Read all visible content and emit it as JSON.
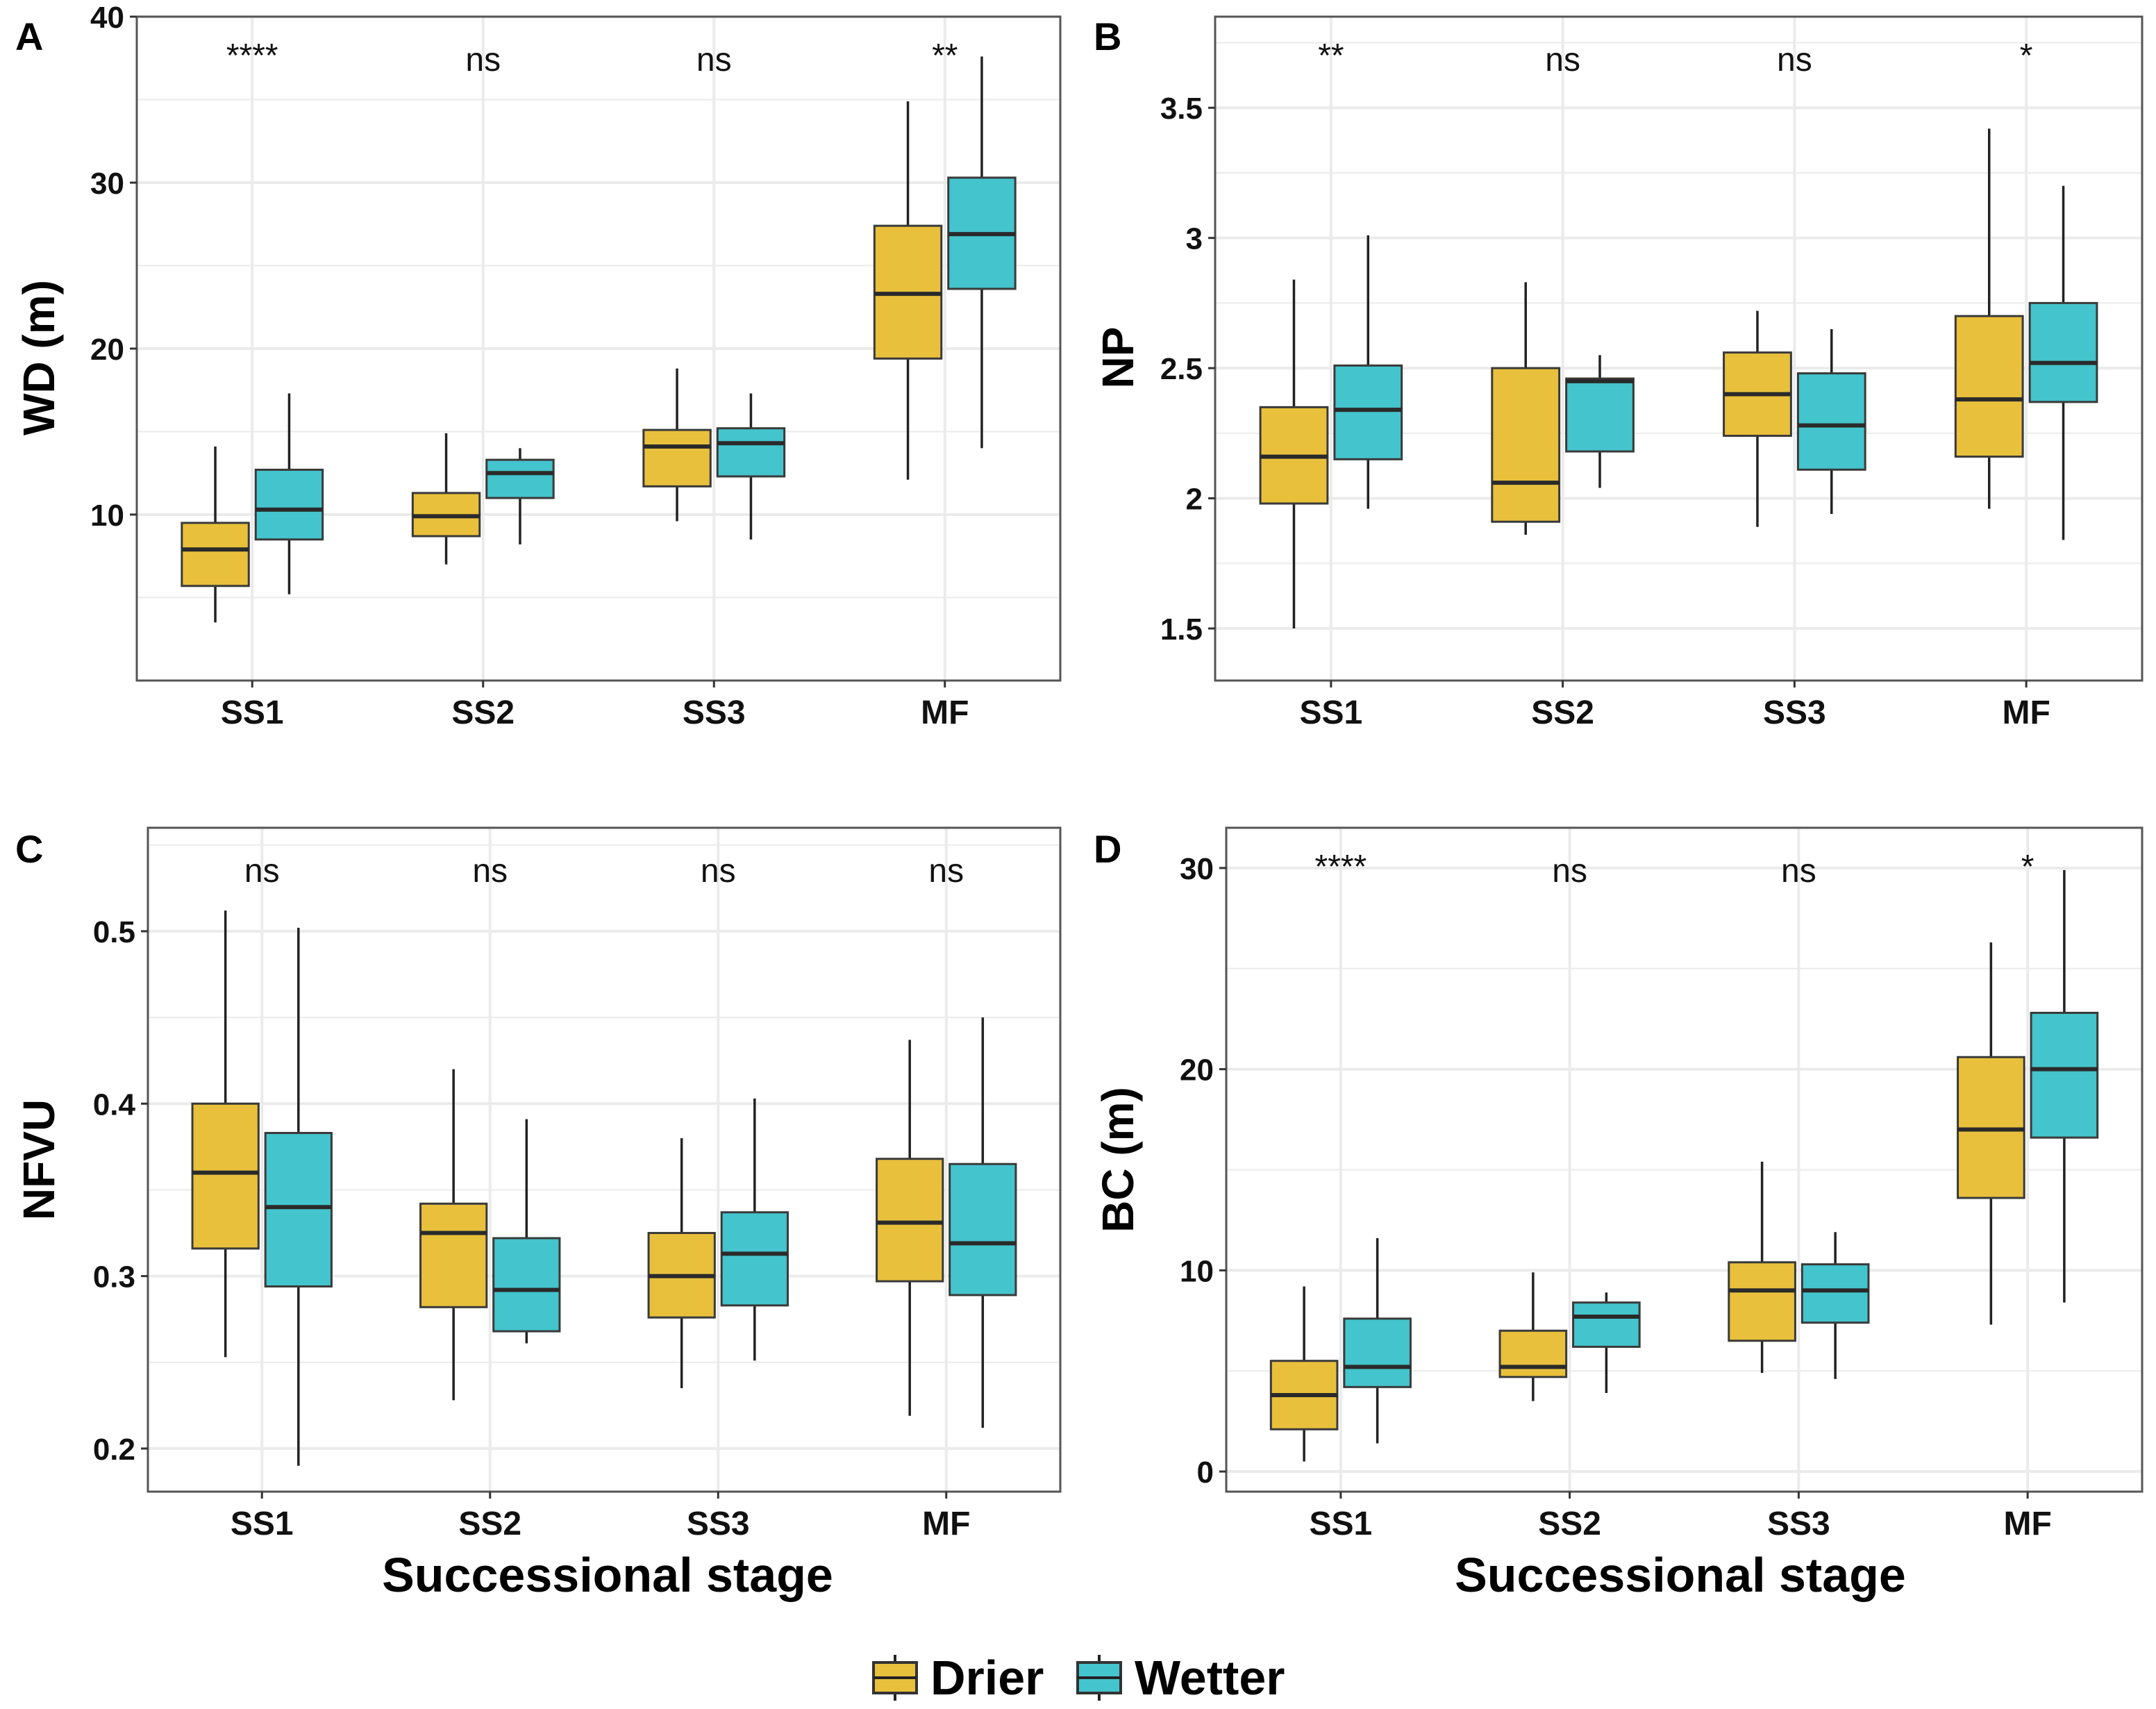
{
  "colors": {
    "drier": "#E8C03C",
    "wetter": "#44C4CC",
    "grid": "#EBEBEB",
    "frame": "#555555",
    "line": "#222222"
  },
  "legend": {
    "items": [
      {
        "label": "Drier"
      },
      {
        "label": "Wetter"
      }
    ]
  },
  "chart_data": [
    {
      "type": "boxplot",
      "panel": "A",
      "ylabel": "WD (m)",
      "xlabel": "",
      "categories": [
        "SS1",
        "SS2",
        "SS3",
        "MF"
      ],
      "ylim": [
        0,
        40
      ],
      "yticks": [
        10,
        20,
        30,
        40
      ],
      "significance": [
        "****",
        "ns",
        "ns",
        "**"
      ],
      "series": [
        {
          "name": "Drier",
          "boxes": [
            {
              "min": 3.5,
              "q1": 5.7,
              "median": 7.9,
              "q3": 9.5,
              "max": 14.1
            },
            {
              "min": 7.0,
              "q1": 8.7,
              "median": 9.9,
              "q3": 11.3,
              "max": 14.9
            },
            {
              "min": 9.6,
              "q1": 11.7,
              "median": 14.1,
              "q3": 15.1,
              "max": 18.8
            },
            {
              "min": 12.1,
              "q1": 19.4,
              "median": 23.3,
              "q3": 27.4,
              "max": 34.9
            }
          ]
        },
        {
          "name": "Wetter",
          "boxes": [
            {
              "min": 5.2,
              "q1": 8.5,
              "median": 10.3,
              "q3": 12.7,
              "max": 17.3
            },
            {
              "min": 8.2,
              "q1": 11.0,
              "median": 12.5,
              "q3": 13.3,
              "max": 14.0
            },
            {
              "min": 8.5,
              "q1": 12.3,
              "median": 14.3,
              "q3": 15.2,
              "max": 17.3
            },
            {
              "min": 14.0,
              "q1": 23.6,
              "median": 26.9,
              "q3": 30.3,
              "max": 37.6
            }
          ]
        }
      ]
    },
    {
      "type": "boxplot",
      "panel": "B",
      "ylabel": "NP",
      "xlabel": "",
      "categories": [
        "SS1",
        "SS2",
        "SS3",
        "MF"
      ],
      "ylim": [
        1.3,
        3.85
      ],
      "yticks": [
        1.5,
        2.0,
        2.5,
        3.0,
        3.5
      ],
      "significance": [
        "**",
        "ns",
        "ns",
        "*"
      ],
      "series": [
        {
          "name": "Drier",
          "boxes": [
            {
              "min": 1.5,
              "q1": 1.98,
              "median": 2.16,
              "q3": 2.35,
              "max": 2.84
            },
            {
              "min": 1.86,
              "q1": 1.91,
              "median": 2.06,
              "q3": 2.5,
              "max": 2.83
            },
            {
              "min": 1.89,
              "q1": 2.24,
              "median": 2.4,
              "q3": 2.56,
              "max": 2.72
            },
            {
              "min": 1.96,
              "q1": 2.16,
              "median": 2.38,
              "q3": 2.7,
              "max": 3.42
            }
          ]
        },
        {
          "name": "Wetter",
          "boxes": [
            {
              "min": 1.96,
              "q1": 2.15,
              "median": 2.34,
              "q3": 2.51,
              "max": 3.01
            },
            {
              "min": 2.04,
              "q1": 2.18,
              "median": 2.45,
              "q3": 2.46,
              "max": 2.55
            },
            {
              "min": 1.94,
              "q1": 2.11,
              "median": 2.28,
              "q3": 2.48,
              "max": 2.65
            },
            {
              "min": 1.84,
              "q1": 2.37,
              "median": 2.52,
              "q3": 2.75,
              "max": 3.2
            }
          ]
        }
      ]
    },
    {
      "type": "boxplot",
      "panel": "C",
      "ylabel": "NFVU",
      "xlabel": "Successional stage",
      "categories": [
        "SS1",
        "SS2",
        "SS3",
        "MF"
      ],
      "ylim": [
        0.175,
        0.56
      ],
      "yticks": [
        0.2,
        0.3,
        0.4,
        0.5
      ],
      "significance": [
        "ns",
        "ns",
        "ns",
        "ns"
      ],
      "series": [
        {
          "name": "Drier",
          "boxes": [
            {
              "min": 0.253,
              "q1": 0.316,
              "median": 0.36,
              "q3": 0.4,
              "max": 0.512
            },
            {
              "min": 0.228,
              "q1": 0.282,
              "median": 0.325,
              "q3": 0.342,
              "max": 0.42
            },
            {
              "min": 0.235,
              "q1": 0.276,
              "median": 0.3,
              "q3": 0.325,
              "max": 0.38
            },
            {
              "min": 0.219,
              "q1": 0.297,
              "median": 0.331,
              "q3": 0.368,
              "max": 0.437
            }
          ]
        },
        {
          "name": "Wetter",
          "boxes": [
            {
              "min": 0.19,
              "q1": 0.294,
              "median": 0.34,
              "q3": 0.383,
              "max": 0.502
            },
            {
              "min": 0.261,
              "q1": 0.268,
              "median": 0.292,
              "q3": 0.322,
              "max": 0.391
            },
            {
              "min": 0.251,
              "q1": 0.283,
              "median": 0.313,
              "q3": 0.337,
              "max": 0.403
            },
            {
              "min": 0.212,
              "q1": 0.289,
              "median": 0.319,
              "q3": 0.365,
              "max": 0.45
            }
          ]
        }
      ]
    },
    {
      "type": "boxplot",
      "panel": "D",
      "ylabel": "BC (m)",
      "xlabel": "Successional stage",
      "categories": [
        "SS1",
        "SS2",
        "SS3",
        "MF"
      ],
      "ylim": [
        -1,
        32
      ],
      "yticks": [
        0,
        10,
        20,
        30
      ],
      "significance": [
        "****",
        "ns",
        "ns",
        "*"
      ],
      "series": [
        {
          "name": "Drier",
          "boxes": [
            {
              "min": 0.5,
              "q1": 2.1,
              "median": 3.8,
              "q3": 5.5,
              "max": 9.2
            },
            {
              "min": 3.5,
              "q1": 4.7,
              "median": 5.2,
              "q3": 7.0,
              "max": 9.9
            },
            {
              "min": 4.9,
              "q1": 6.5,
              "median": 9.0,
              "q3": 10.4,
              "max": 15.4
            },
            {
              "min": 7.3,
              "q1": 13.6,
              "median": 17.0,
              "q3": 20.6,
              "max": 26.3
            }
          ]
        },
        {
          "name": "Wetter",
          "boxes": [
            {
              "min": 1.4,
              "q1": 4.2,
              "median": 5.2,
              "q3": 7.6,
              "max": 11.6
            },
            {
              "min": 3.9,
              "q1": 6.2,
              "median": 7.7,
              "q3": 8.4,
              "max": 8.9
            },
            {
              "min": 4.6,
              "q1": 7.4,
              "median": 9.0,
              "q3": 10.3,
              "max": 11.9
            },
            {
              "min": 8.4,
              "q1": 16.6,
              "median": 20.0,
              "q3": 22.8,
              "max": 29.9
            }
          ]
        }
      ]
    }
  ]
}
